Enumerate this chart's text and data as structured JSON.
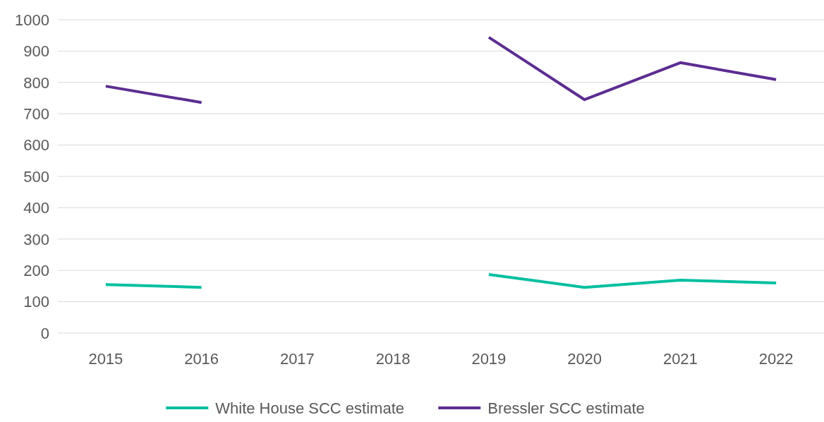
{
  "chart_data": {
    "type": "line",
    "categories": [
      "2015",
      "2016",
      "2017",
      "2018",
      "2019",
      "2020",
      "2021",
      "2022"
    ],
    "series": [
      {
        "name": "White House SCC estimate",
        "color": "#00bfa0",
        "values": [
          155,
          146,
          null,
          null,
          187,
          146,
          169,
          160
        ]
      },
      {
        "name": "Bressler SCC estimate",
        "color": "#5c2d91",
        "values": [
          788,
          736,
          null,
          null,
          944,
          745,
          863,
          809
        ]
      }
    ],
    "ylim": [
      0,
      1000
    ],
    "yticks": [
      0,
      100,
      200,
      300,
      400,
      500,
      600,
      700,
      800,
      900,
      1000
    ],
    "grid": "y",
    "legend": "bottom",
    "marker": "none",
    "line_style": "solid"
  }
}
